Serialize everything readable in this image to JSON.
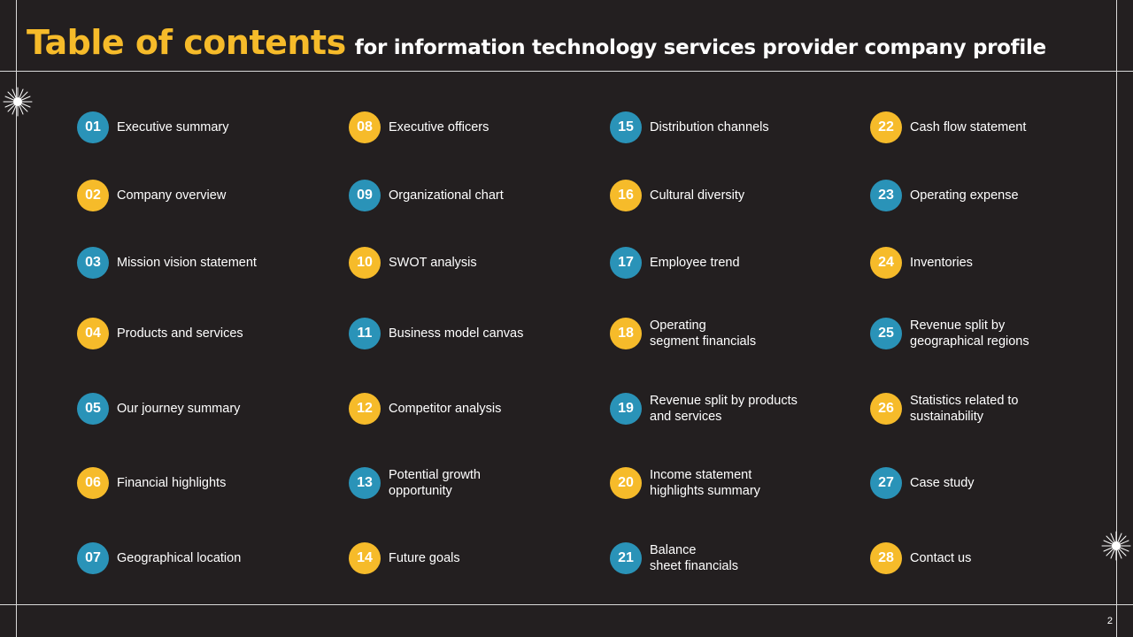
{
  "title": {
    "main": "Table of contents",
    "sub": "for information technology services provider company profile"
  },
  "colors": {
    "yellow": "#f6bb2a",
    "blue": "#2a93b8",
    "background": "#231f20"
  },
  "toc": [
    {
      "num": "01",
      "label": "Executive summary",
      "color": "blue"
    },
    {
      "num": "02",
      "label": "Company overview",
      "color": "yellow"
    },
    {
      "num": "03",
      "label": "Mission vision statement",
      "color": "blue"
    },
    {
      "num": "04",
      "label": "Products and services",
      "color": "yellow"
    },
    {
      "num": "05",
      "label": "Our journey summary",
      "color": "blue"
    },
    {
      "num": "06",
      "label": "Financial highlights",
      "color": "yellow"
    },
    {
      "num": "07",
      "label": "Geographical location",
      "color": "blue"
    },
    {
      "num": "08",
      "label": "Executive officers",
      "color": "yellow"
    },
    {
      "num": "09",
      "label": "Organizational chart",
      "color": "blue"
    },
    {
      "num": "10",
      "label": "SWOT analysis",
      "color": "yellow"
    },
    {
      "num": "11",
      "label": "Business model canvas",
      "color": "blue"
    },
    {
      "num": "12",
      "label": "Competitor analysis",
      "color": "yellow"
    },
    {
      "num": "13",
      "label": "Potential growth\nopportunity",
      "color": "blue"
    },
    {
      "num": "14",
      "label": "Future goals",
      "color": "yellow"
    },
    {
      "num": "15",
      "label": "Distribution channels",
      "color": "blue"
    },
    {
      "num": "16",
      "label": "Cultural diversity",
      "color": "yellow"
    },
    {
      "num": "17",
      "label": "Employee trend",
      "color": "blue"
    },
    {
      "num": "18",
      "label": "Operating\nsegment financials",
      "color": "yellow"
    },
    {
      "num": "19",
      "label": "Revenue split by products\nand services",
      "color": "blue"
    },
    {
      "num": "20",
      "label": "Income statement\nhighlights summary",
      "color": "yellow"
    },
    {
      "num": "21",
      "label": "Balance\nsheet financials",
      "color": "blue"
    },
    {
      "num": "22",
      "label": "Cash flow statement",
      "color": "yellow"
    },
    {
      "num": "23",
      "label": "Operating expense",
      "color": "blue"
    },
    {
      "num": "24",
      "label": "Inventories",
      "color": "yellow"
    },
    {
      "num": "25",
      "label": "Revenue split by\ngeographical regions",
      "color": "blue"
    },
    {
      "num": "26",
      "label": "Statistics related to\nsustainability",
      "color": "yellow"
    },
    {
      "num": "27",
      "label": "Case study",
      "color": "blue"
    },
    {
      "num": "28",
      "label": "Contact us",
      "color": "yellow"
    }
  ],
  "page_number": "2"
}
